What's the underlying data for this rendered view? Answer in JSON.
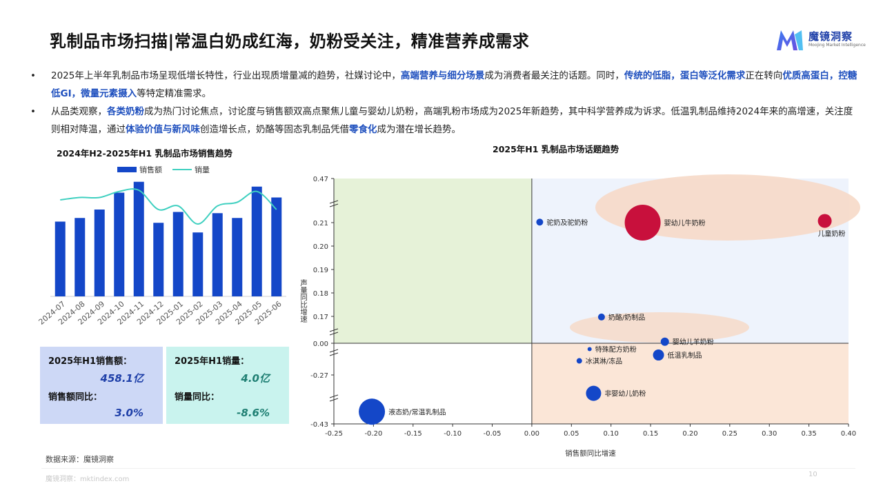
{
  "page": {
    "title": "乳制品市场扫描|常温白奶成红海，奶粉受关注，精准营养成需求",
    "brand_name": "魔镜洞察",
    "brand_sub": "Moojing Market Intelligence",
    "source": "数据来源：魔镜洞察",
    "footer_url": "魔镜洞察：mktindex.com",
    "page_number": "10"
  },
  "bullets": [
    [
      {
        "t": "2025年上半年乳制品市场呈现低增长特性，行业出现质增量减的趋势，社媒讨论中，"
      },
      {
        "t": "高端营养与细分场景",
        "hl": true
      },
      {
        "t": "成为消费者最关注的话题。同时，"
      },
      {
        "t": "传统的低脂，蛋白等泛化需求",
        "hl": true
      },
      {
        "t": "正在转向"
      },
      {
        "t": "优质高蛋白，控糖低GI，微量元素摄入",
        "hl": true
      },
      {
        "t": "等特定精准需求。"
      }
    ],
    [
      {
        "t": "从品类观察，"
      },
      {
        "t": "各类奶粉",
        "hl": true
      },
      {
        "t": "成为热门讨论焦点，讨论度与销售额双高点聚焦儿童与婴幼儿奶粉，高端乳粉市场成为2025年新趋势，其中科学营养成为诉求。低温乳制品维持2024年来的高增速，关注度则相对降温，通过"
      },
      {
        "t": "体验价值与新风味",
        "hl": true
      },
      {
        "t": "创造增长点，奶酪等固态乳制品凭借"
      },
      {
        "t": "零食化",
        "hl": true
      },
      {
        "t": "成为潜在增长趋势。"
      }
    ]
  ],
  "cards": {
    "sales_label": "2025年H1销售额：",
    "sales_value": "458.1亿",
    "sales_yoy_label": "销售额同比：",
    "sales_yoy_value": "3.0%",
    "volume_label": "2025年H1销量：",
    "volume_value": "4.0亿",
    "volume_yoy_label": "销量同比：",
    "volume_yoy_value": "-8.6%"
  },
  "colors": {
    "bar": "#1447c8",
    "line": "#3fd0c0",
    "bubble_blue": "#1447c8",
    "bubble_red": "#c8103c",
    "quad_green": "#e6f2d8",
    "quad_blue": "#eef3fc",
    "quad_peach": "#fbe6d7",
    "ellipse": "#f6d9c8"
  },
  "chart_data": [
    {
      "type": "bar",
      "title": "2024年H2-2025年H1 乳制品市场销售趋势",
      "categories": [
        "2024-07",
        "2024-08",
        "2024-09",
        "2024-10",
        "2024-11",
        "2024-12",
        "2025-01",
        "2025-02",
        "2025-03",
        "2025-04",
        "2025-05",
        "2025-06"
      ],
      "series": [
        {
          "name": "销售额",
          "type": "bar",
          "values": [
            62,
            65,
            72,
            86,
            95,
            61,
            70,
            53,
            69,
            65,
            91,
            82
          ]
        },
        {
          "name": "销量",
          "type": "line",
          "values": [
            80,
            82,
            82,
            87,
            88,
            72,
            75,
            60,
            75,
            78,
            87,
            72
          ]
        }
      ],
      "ylim": [
        0,
        100
      ],
      "legend": "top",
      "grid": false
    },
    {
      "type": "scatter",
      "title": "2025年H1 乳制品市场话题趋势",
      "xlabel": "销售额同比增速",
      "ylabel": "声量同比增速",
      "xlim": [
        -0.25,
        0.4
      ],
      "xticks": [
        "-0.25",
        "-0.20",
        "-0.15",
        "-0.10",
        "-0.05",
        "0.00",
        "0.05",
        "0.10",
        "0.15",
        "0.20",
        "0.25",
        "0.30",
        "0.35",
        "0.40"
      ],
      "yticks": [
        "-0.43",
        "-0.27",
        "0.00",
        "0.17",
        "0.18",
        "0.19",
        "0.20",
        "0.21",
        "0.47"
      ],
      "y_axis": "broken (non-linear) scale",
      "points": [
        {
          "label": "驼奶及驼奶粉",
          "x": 0.01,
          "y": 0.213,
          "size": 5,
          "color": "blue"
        },
        {
          "label": "婴幼儿牛奶粉",
          "x": 0.14,
          "y": 0.21,
          "size": 26,
          "color": "red"
        },
        {
          "label": "儿童奶粉",
          "x": 0.37,
          "y": 0.22,
          "size": 10,
          "color": "red"
        },
        {
          "label": "奶酪/奶制品",
          "x": 0.088,
          "y": 0.166,
          "size": 5,
          "color": "blue"
        },
        {
          "label": "婴幼儿羊奶粉",
          "x": 0.168,
          "y": 0.01,
          "size": 6,
          "color": "blue"
        },
        {
          "label": "特殊配方奶粉",
          "x": 0.073,
          "y": -0.05,
          "size": 3,
          "color": "blue"
        },
        {
          "label": "低温乳制品",
          "x": 0.16,
          "y": -0.1,
          "size": 8,
          "color": "blue"
        },
        {
          "label": "冰淇淋/冻品",
          "x": 0.06,
          "y": -0.15,
          "size": 4,
          "color": "blue"
        },
        {
          "label": "非婴幼儿奶粉",
          "x": 0.078,
          "y": -0.33,
          "size": 11,
          "color": "blue"
        },
        {
          "label": "液态奶/常温乳制品",
          "x": -0.202,
          "y": -0.39,
          "size": 19,
          "color": "blue"
        }
      ],
      "grid": false
    }
  ]
}
